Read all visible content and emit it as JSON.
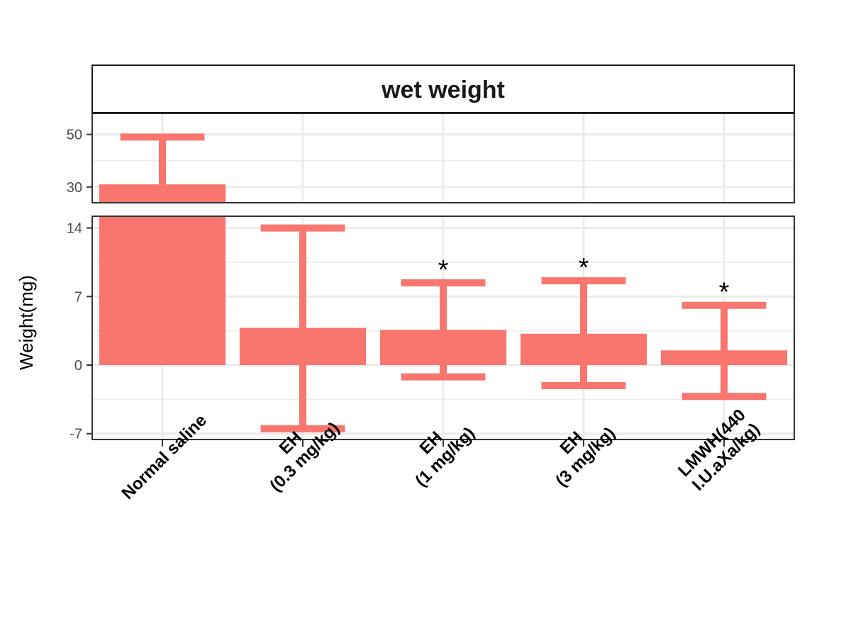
{
  "chart_data": {
    "type": "bar",
    "title": "wet weight",
    "ylabel": "Weight(mg)",
    "xlabel": "",
    "bar_color": "#F8766D",
    "grid": true,
    "axis_break": {
      "lower_ylim": [
        -7.6,
        15.2
      ],
      "upper_ylim": [
        24,
        58
      ]
    },
    "lower_ticks": [
      -7,
      0,
      7,
      14
    ],
    "upper_ticks": [
      30,
      50
    ],
    "categories": [
      [
        "Normal saline"
      ],
      [
        "EH",
        "(0.3 mg/kg)"
      ],
      [
        "EH",
        "(1 mg/kg)"
      ],
      [
        "EH",
        "(3 mg/kg)"
      ],
      [
        "LMWH(440",
        "I.U.aXa/kg)"
      ]
    ],
    "values": [
      31,
      3.8,
      3.6,
      3.2,
      1.5
    ],
    "error_upper": [
      49,
      14,
      8.4,
      8.6,
      6.1
    ],
    "error_lower": [
      null,
      -6.5,
      -1.2,
      -2.1,
      -3.2
    ],
    "significance": [
      "",
      "",
      "*",
      "*",
      "*"
    ]
  }
}
